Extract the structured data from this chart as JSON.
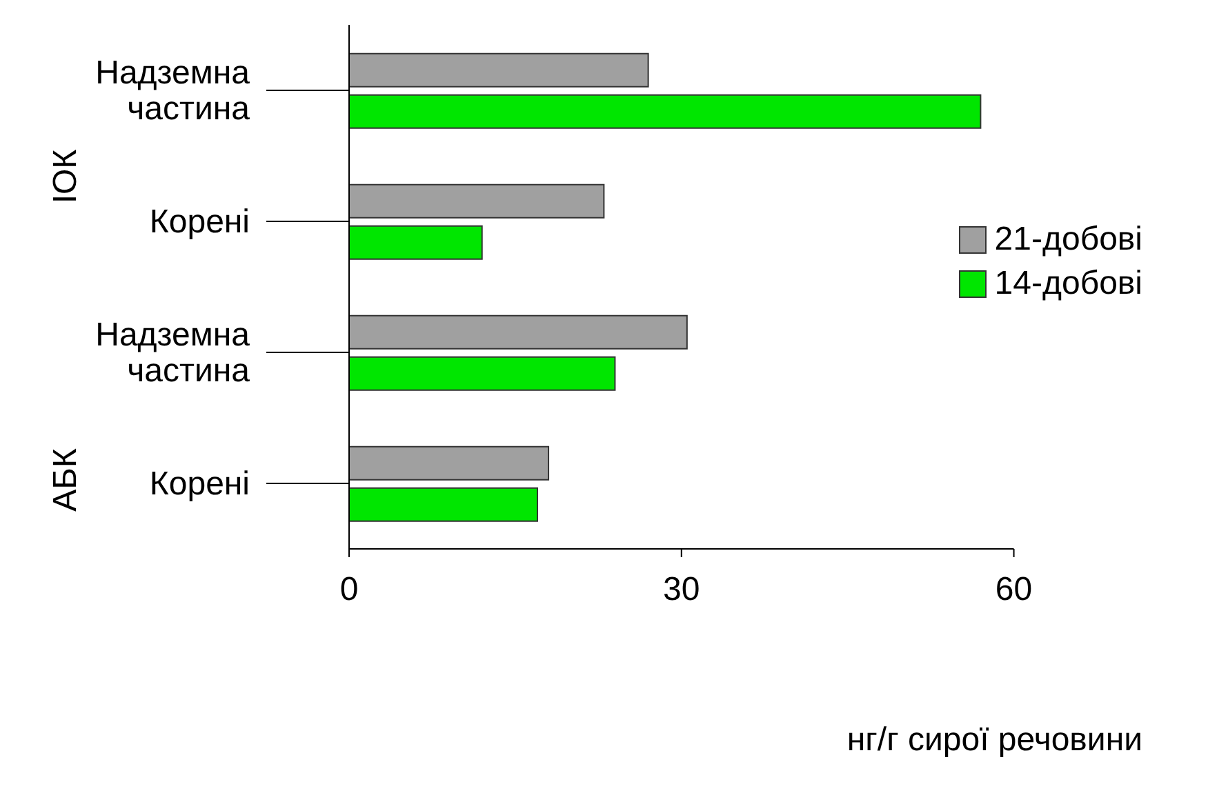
{
  "chart_data": {
    "type": "bar",
    "orientation": "horizontal",
    "categories": [
      "Надземна частина",
      "Корені",
      "Надземна частина",
      "Корені"
    ],
    "series": [
      {
        "name": "21-добові",
        "color": "#a0a0a0",
        "values": [
          27,
          23,
          30.5,
          18
        ]
      },
      {
        "name": "14-добові",
        "color": "#00e600",
        "values": [
          57,
          12,
          24,
          17
        ]
      }
    ],
    "annotations": [
      "ІОК",
      "АБК"
    ],
    "xlim": [
      0,
      60
    ],
    "xticks": [
      0,
      30,
      60
    ],
    "xlabel": "нг/г сирої речовини",
    "legend": "right"
  }
}
